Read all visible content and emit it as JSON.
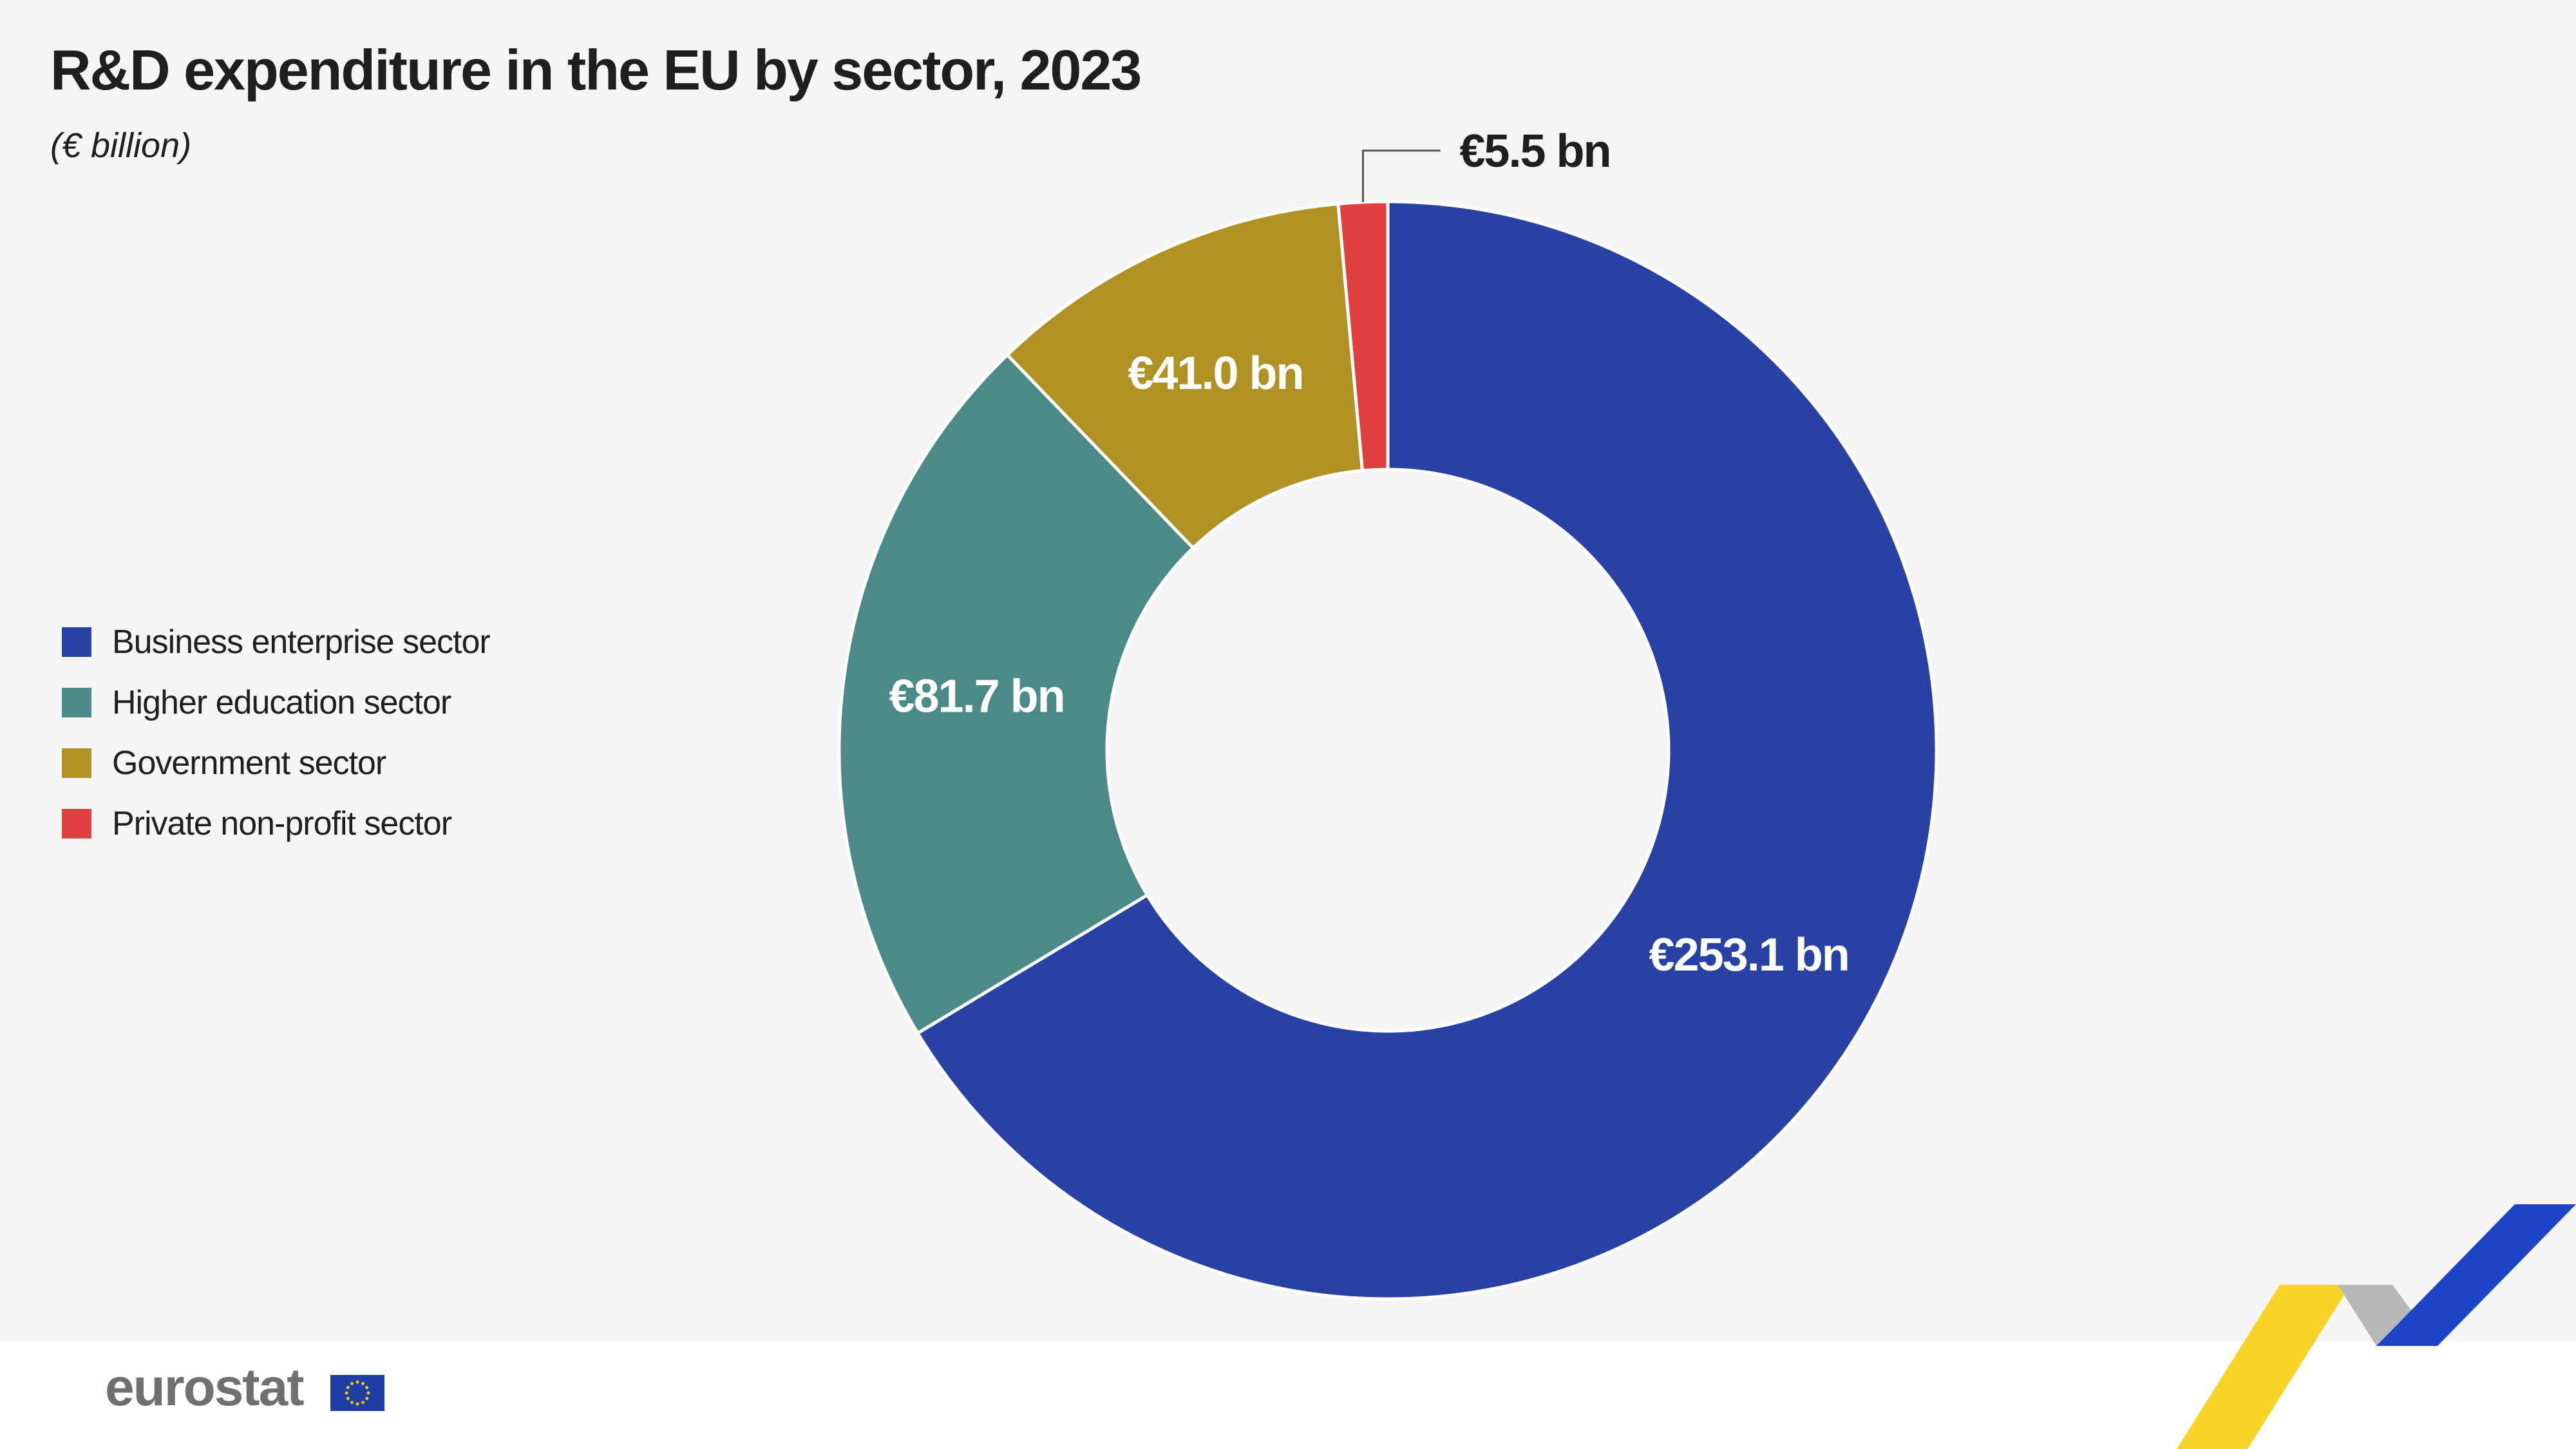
{
  "title": "R&D expenditure in the EU by sector, 2023",
  "subtitle": "(€ billion)",
  "footer": {
    "logo_text": "eurostat",
    "logo_icon": "eu-flag-icon"
  },
  "chart_data": {
    "type": "pie",
    "variant": "donut",
    "title": "R&D expenditure in the EU by sector, 2023",
    "subtitle": "(€ billion)",
    "unit": "€ billion",
    "legend_position": "left",
    "slices": [
      {
        "name": "Business enterprise sector",
        "value": 253.1,
        "label": "€253.1 bn",
        "color": "#2841a5"
      },
      {
        "name": "Higher education sector",
        "value": 81.7,
        "label": "€81.7 bn",
        "color": "#4a8b88"
      },
      {
        "name": "Government sector",
        "value": 41.0,
        "label": "€41.0 bn",
        "color": "#b09124"
      },
      {
        "name": "Private non-profit sector",
        "value": 5.5,
        "label": "€5.5 bn",
        "color": "#e04040"
      }
    ]
  }
}
